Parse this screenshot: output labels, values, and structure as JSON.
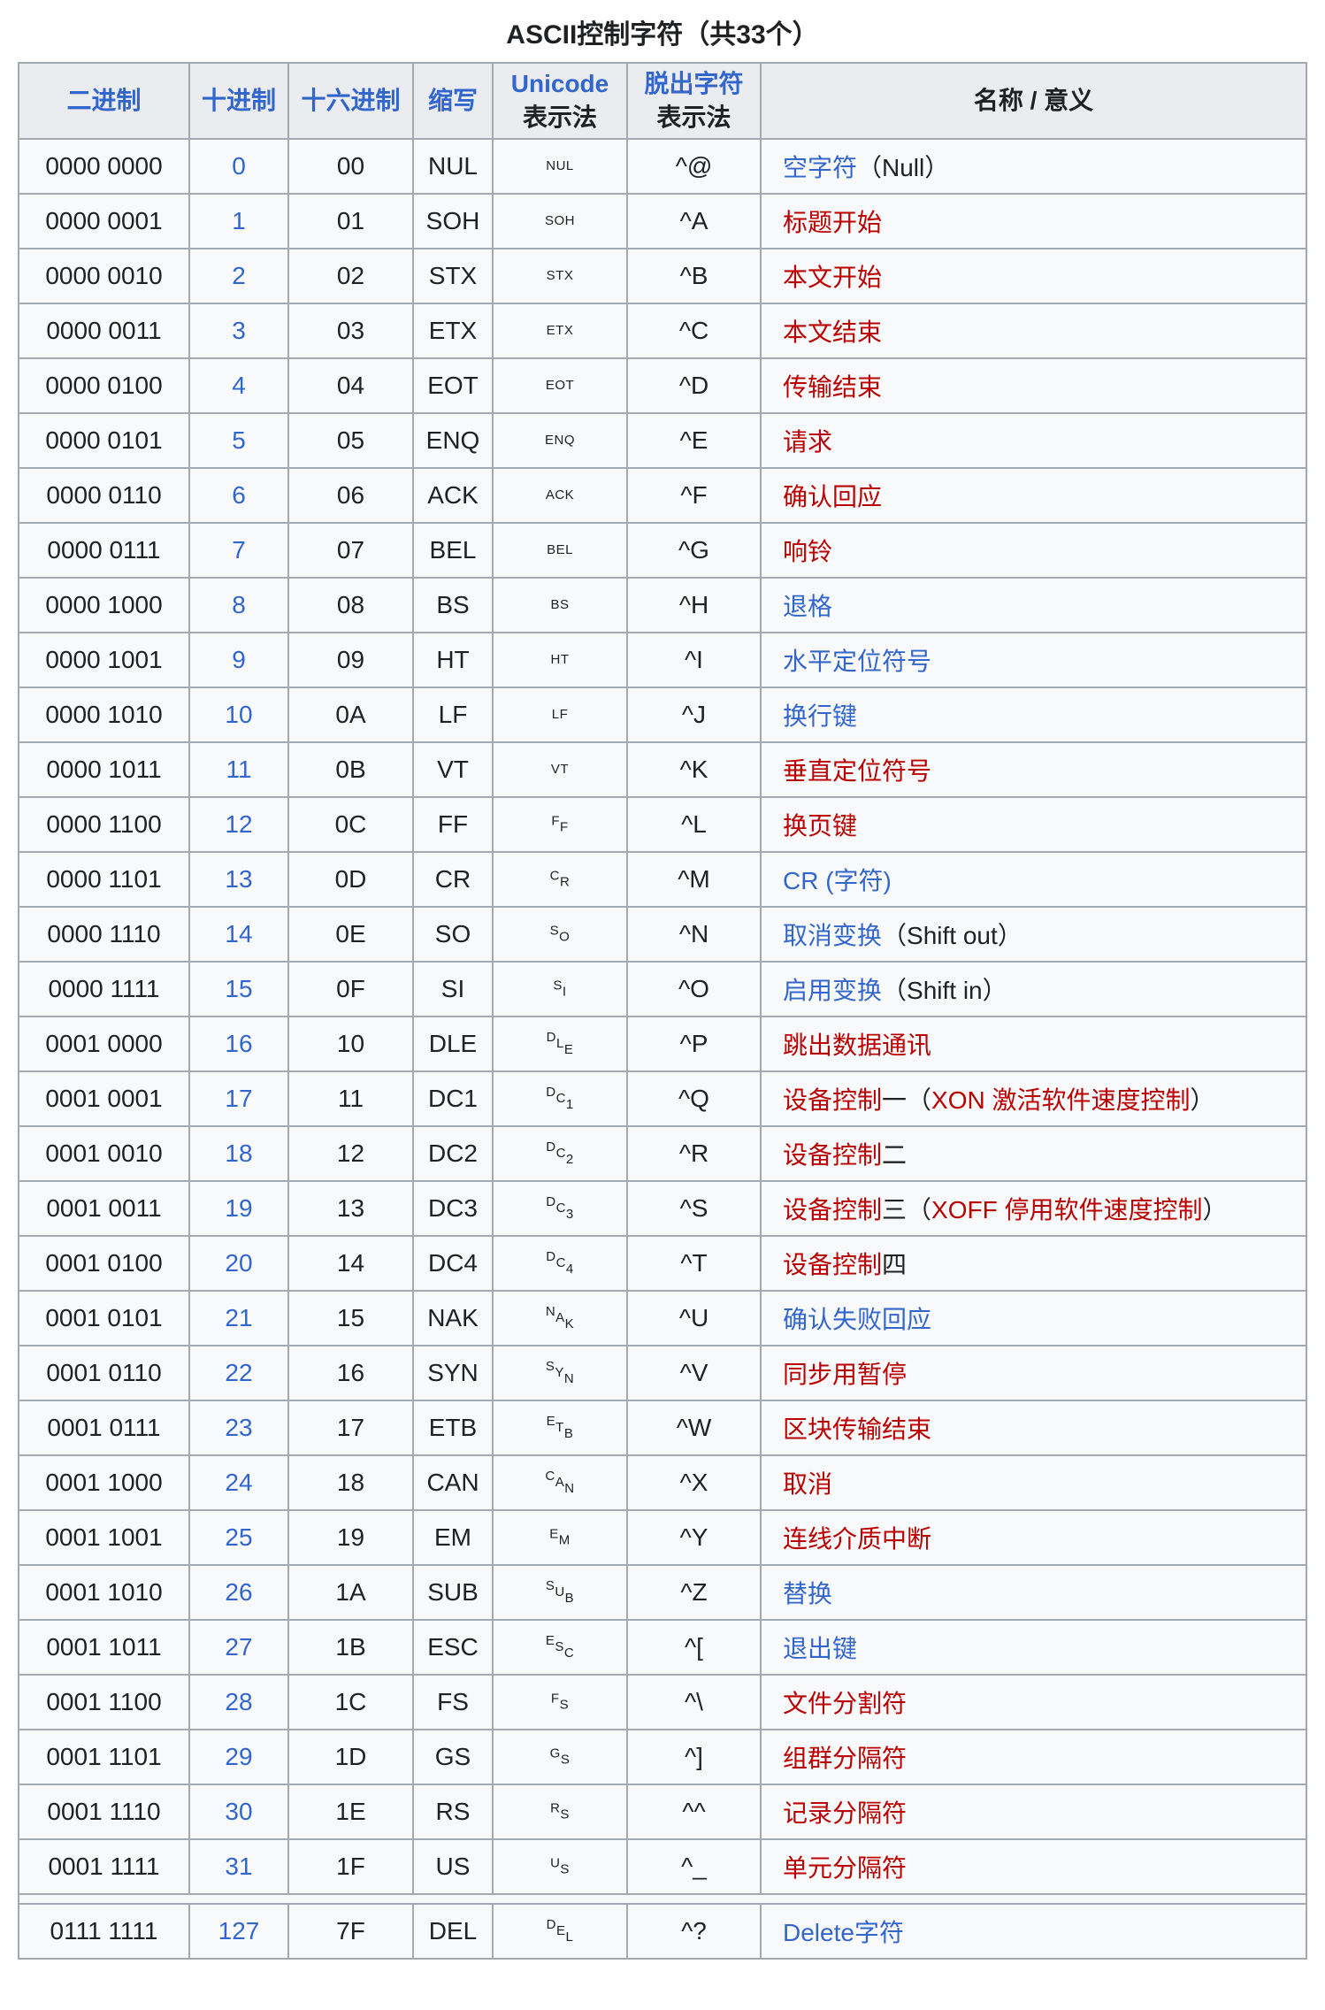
{
  "caption": "ASCII控制字符（共33个）",
  "header": {
    "binary": "二进制",
    "decimal": "十进制",
    "hex": "十六进制",
    "abbr": "缩写",
    "unicode_line1": "Unicode",
    "unicode_line2": "表示法",
    "escape_line1": "脱出字符",
    "escape_line2": "表示法",
    "name": "名称 / 意义"
  },
  "colors": {
    "link_blue": "#3366cc",
    "link_red": "#ba0000",
    "text": "#202122",
    "cell_bg": "#f8f9fa",
    "header_bg": "#eaecf0",
    "border": "#a2a9b1"
  },
  "rows": [
    {
      "bin": "0000 0000",
      "dec": "0",
      "hex": "00",
      "abbr": "NUL",
      "pic": "NUL",
      "pic_style": "flat",
      "esc": "^@",
      "name": [
        {
          "t": "空字符",
          "c": "blue"
        },
        {
          "t": "（Null）",
          "c": "plain"
        }
      ]
    },
    {
      "bin": "0000 0001",
      "dec": "1",
      "hex": "01",
      "abbr": "SOH",
      "pic": "SOH",
      "pic_style": "flat",
      "esc": "^A",
      "name": [
        {
          "t": "标题开始",
          "c": "red"
        }
      ]
    },
    {
      "bin": "0000 0010",
      "dec": "2",
      "hex": "02",
      "abbr": "STX",
      "pic": "STX",
      "pic_style": "flat",
      "esc": "^B",
      "name": [
        {
          "t": "本文开始",
          "c": "red"
        }
      ]
    },
    {
      "bin": "0000 0011",
      "dec": "3",
      "hex": "03",
      "abbr": "ETX",
      "pic": "ETX",
      "pic_style": "flat",
      "esc": "^C",
      "name": [
        {
          "t": "本文结束",
          "c": "red"
        }
      ]
    },
    {
      "bin": "0000 0100",
      "dec": "4",
      "hex": "04",
      "abbr": "EOT",
      "pic": "EOT",
      "pic_style": "flat",
      "esc": "^D",
      "name": [
        {
          "t": "传输结束",
          "c": "red"
        }
      ]
    },
    {
      "bin": "0000 0101",
      "dec": "5",
      "hex": "05",
      "abbr": "ENQ",
      "pic": "ENQ",
      "pic_style": "flat",
      "esc": "^E",
      "name": [
        {
          "t": "请求",
          "c": "red"
        }
      ]
    },
    {
      "bin": "0000 0110",
      "dec": "6",
      "hex": "06",
      "abbr": "ACK",
      "pic": "ACK",
      "pic_style": "flat",
      "esc": "^F",
      "name": [
        {
          "t": "确认回应",
          "c": "red"
        }
      ]
    },
    {
      "bin": "0000 0111",
      "dec": "7",
      "hex": "07",
      "abbr": "BEL",
      "pic": "BEL",
      "pic_style": "flat",
      "esc": "^G",
      "name": [
        {
          "t": "响铃",
          "c": "red"
        }
      ]
    },
    {
      "bin": "0000 1000",
      "dec": "8",
      "hex": "08",
      "abbr": "BS",
      "pic": "BS",
      "pic_style": "flat",
      "esc": "^H",
      "name": [
        {
          "t": "退格",
          "c": "blue"
        }
      ]
    },
    {
      "bin": "0000 1001",
      "dec": "9",
      "hex": "09",
      "abbr": "HT",
      "pic": "HT",
      "pic_style": "flat",
      "esc": "^I",
      "name": [
        {
          "t": "水平定位符号",
          "c": "blue"
        }
      ]
    },
    {
      "bin": "0000 1010",
      "dec": "10",
      "hex": "0A",
      "abbr": "LF",
      "pic": "LF",
      "pic_style": "flat",
      "esc": "^J",
      "name": [
        {
          "t": "换行键",
          "c": "blue"
        }
      ]
    },
    {
      "bin": "0000 1011",
      "dec": "11",
      "hex": "0B",
      "abbr": "VT",
      "pic": "VT",
      "pic_style": "flat",
      "esc": "^K",
      "name": [
        {
          "t": "垂直定位符号",
          "c": "red"
        }
      ]
    },
    {
      "bin": "0000 1100",
      "dec": "12",
      "hex": "0C",
      "abbr": "FF",
      "pic": "FF",
      "pic_style": "stair",
      "esc": "^L",
      "name": [
        {
          "t": "换页键",
          "c": "red"
        }
      ]
    },
    {
      "bin": "0000 1101",
      "dec": "13",
      "hex": "0D",
      "abbr": "CR",
      "pic": "CR",
      "pic_style": "stair",
      "esc": "^M",
      "name": [
        {
          "t": "CR (字符)",
          "c": "blue"
        }
      ]
    },
    {
      "bin": "0000 1110",
      "dec": "14",
      "hex": "0E",
      "abbr": "SO",
      "pic": "SO",
      "pic_style": "stair",
      "esc": "^N",
      "name": [
        {
          "t": "取消变换",
          "c": "blue"
        },
        {
          "t": "（Shift out）",
          "c": "plain"
        }
      ]
    },
    {
      "bin": "0000 1111",
      "dec": "15",
      "hex": "0F",
      "abbr": "SI",
      "pic": "SI",
      "pic_style": "stair",
      "esc": "^O",
      "name": [
        {
          "t": "启用变换",
          "c": "blue"
        },
        {
          "t": "（Shift in）",
          "c": "plain"
        }
      ]
    },
    {
      "bin": "0001 0000",
      "dec": "16",
      "hex": "10",
      "abbr": "DLE",
      "pic": "DLE",
      "pic_style": "stair",
      "esc": "^P",
      "name": [
        {
          "t": "跳出数据通讯",
          "c": "red"
        }
      ]
    },
    {
      "bin": "0001 0001",
      "dec": "17",
      "hex": "11",
      "abbr": "DC1",
      "pic": "DC1",
      "pic_style": "stair",
      "esc": "^Q",
      "name": [
        {
          "t": "设备控制",
          "c": "red"
        },
        {
          "t": "一（",
          "c": "plain"
        },
        {
          "t": "XON 激活软件速度控制",
          "c": "red"
        },
        {
          "t": "）",
          "c": "plain"
        }
      ]
    },
    {
      "bin": "0001 0010",
      "dec": "18",
      "hex": "12",
      "abbr": "DC2",
      "pic": "DC2",
      "pic_style": "stair",
      "esc": "^R",
      "name": [
        {
          "t": "设备控制",
          "c": "red"
        },
        {
          "t": "二",
          "c": "plain"
        }
      ]
    },
    {
      "bin": "0001 0011",
      "dec": "19",
      "hex": "13",
      "abbr": "DC3",
      "pic": "DC3",
      "pic_style": "stair",
      "esc": "^S",
      "name": [
        {
          "t": "设备控制",
          "c": "red"
        },
        {
          "t": "三（",
          "c": "plain"
        },
        {
          "t": "XOFF 停用软件速度控制",
          "c": "red"
        },
        {
          "t": "）",
          "c": "plain"
        }
      ]
    },
    {
      "bin": "0001 0100",
      "dec": "20",
      "hex": "14",
      "abbr": "DC4",
      "pic": "DC4",
      "pic_style": "stair",
      "esc": "^T",
      "name": [
        {
          "t": "设备控制",
          "c": "red"
        },
        {
          "t": "四",
          "c": "plain"
        }
      ]
    },
    {
      "bin": "0001 0101",
      "dec": "21",
      "hex": "15",
      "abbr": "NAK",
      "pic": "NAK",
      "pic_style": "stair",
      "esc": "^U",
      "name": [
        {
          "t": "确认失败回应",
          "c": "blue"
        }
      ]
    },
    {
      "bin": "0001 0110",
      "dec": "22",
      "hex": "16",
      "abbr": "SYN",
      "pic": "SYN",
      "pic_style": "stair",
      "esc": "^V",
      "name": [
        {
          "t": "同步用暂停",
          "c": "red"
        }
      ]
    },
    {
      "bin": "0001 0111",
      "dec": "23",
      "hex": "17",
      "abbr": "ETB",
      "pic": "ETB",
      "pic_style": "stair",
      "esc": "^W",
      "name": [
        {
          "t": "区块传输结束",
          "c": "red"
        }
      ]
    },
    {
      "bin": "0001 1000",
      "dec": "24",
      "hex": "18",
      "abbr": "CAN",
      "pic": "CAN",
      "pic_style": "stair",
      "esc": "^X",
      "name": [
        {
          "t": "取消",
          "c": "red"
        }
      ]
    },
    {
      "bin": "0001 1001",
      "dec": "25",
      "hex": "19",
      "abbr": "EM",
      "pic": "EM",
      "pic_style": "stair",
      "esc": "^Y",
      "name": [
        {
          "t": "连线介质中断",
          "c": "red"
        }
      ]
    },
    {
      "bin": "0001 1010",
      "dec": "26",
      "hex": "1A",
      "abbr": "SUB",
      "pic": "SUB",
      "pic_style": "stair",
      "esc": "^Z",
      "name": [
        {
          "t": "替换",
          "c": "blue"
        }
      ]
    },
    {
      "bin": "0001 1011",
      "dec": "27",
      "hex": "1B",
      "abbr": "ESC",
      "pic": "ESC",
      "pic_style": "stair",
      "esc": "^[",
      "name": [
        {
          "t": "退出键",
          "c": "blue"
        }
      ]
    },
    {
      "bin": "0001 1100",
      "dec": "28",
      "hex": "1C",
      "abbr": "FS",
      "pic": "FS",
      "pic_style": "stair",
      "esc": "^\\",
      "name": [
        {
          "t": "文件分割符",
          "c": "red"
        }
      ]
    },
    {
      "bin": "0001 1101",
      "dec": "29",
      "hex": "1D",
      "abbr": "GS",
      "pic": "GS",
      "pic_style": "stair",
      "esc": "^]",
      "name": [
        {
          "t": "组群分隔符",
          "c": "red"
        }
      ]
    },
    {
      "bin": "0001 1110",
      "dec": "30",
      "hex": "1E",
      "abbr": "RS",
      "pic": "RS",
      "pic_style": "stair",
      "esc": "^^",
      "name": [
        {
          "t": "记录分隔符",
          "c": "red"
        }
      ]
    },
    {
      "bin": "0001 1111",
      "dec": "31",
      "hex": "1F",
      "abbr": "US",
      "pic": "US",
      "pic_style": "stair",
      "esc": "^_",
      "name": [
        {
          "t": "单元分隔符",
          "c": "red"
        }
      ]
    },
    {
      "bin": "0111 1111",
      "dec": "127",
      "hex": "7F",
      "abbr": "DEL",
      "pic": "DEL",
      "pic_style": "stair",
      "esc": "^?",
      "name": [
        {
          "t": "Delete字符",
          "c": "blue"
        }
      ],
      "spacer_before": true
    }
  ]
}
